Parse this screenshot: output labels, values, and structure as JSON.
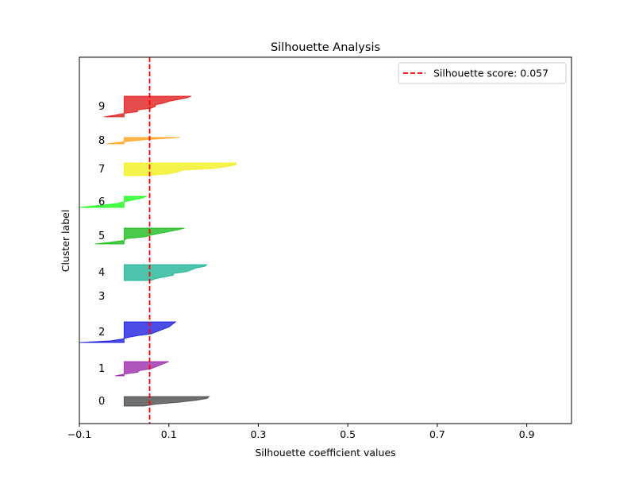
{
  "chart_data": {
    "type": "area",
    "title": "Silhouette Analysis",
    "xlabel": "Silhouette coefficient values",
    "ylabel": "Cluster label",
    "xlim": [
      -0.1,
      1.0
    ],
    "ylim": [
      0,
      230.5
    ],
    "xticks": [
      -0.1,
      0.1,
      0.3,
      0.5,
      0.7,
      0.9
    ],
    "xtick_labels": [
      "−0.1",
      "0.1",
      "0.3",
      "0.5",
      "0.7",
      "0.9"
    ],
    "yticks": [],
    "grid": false,
    "silhouette_score": 0.057,
    "score_line": {
      "label": "Silhouette score: 0.057",
      "color": "#ff0000",
      "style": "dashed"
    },
    "legend": {
      "placement": "top-right",
      "entries": [
        "Silhouette score: 0.057"
      ]
    },
    "clusters": [
      {
        "label": "0",
        "color": "#333333",
        "y_lower": 11,
        "size": 6,
        "values": [
          0.045,
          0.07,
          0.12,
          0.16,
          0.185,
          0.19
        ]
      },
      {
        "label": "1",
        "color": "#8e0ea0",
        "y_lower": 30,
        "size": 9,
        "values": [
          -0.02,
          0.0,
          0.03,
          0.035,
          0.06,
          0.07,
          0.08,
          0.09,
          0.1
        ]
      },
      {
        "label": "2",
        "color": "#0000dd",
        "y_lower": 51,
        "size": 13,
        "values": [
          -0.1,
          -0.03,
          -0.005,
          0.01,
          0.03,
          0.06,
          0.07,
          0.08,
          0.09,
          0.1,
          0.105,
          0.11,
          0.115
        ]
      },
      {
        "label": "3",
        "color": "#0088dd",
        "y_lower": 80,
        "size": 0,
        "values": []
      },
      {
        "label": "4",
        "color": "#00aa88",
        "y_lower": 90,
        "size": 10,
        "values": [
          0.06,
          0.07,
          0.09,
          0.11,
          0.11,
          0.14,
          0.15,
          0.16,
          0.18,
          0.185
        ]
      },
      {
        "label": "5",
        "color": "#00b400",
        "y_lower": 113,
        "size": 10,
        "values": [
          -0.065,
          -0.03,
          0.0,
          0.005,
          0.045,
          0.06,
          0.08,
          0.1,
          0.12,
          0.135
        ]
      },
      {
        "label": "6",
        "color": "#00ff00",
        "y_lower": 136,
        "size": 7,
        "values": [
          -0.1,
          -0.06,
          -0.02,
          0.0,
          0.02,
          0.04,
          0.05
        ]
      },
      {
        "label": "7",
        "color": "#eeee00",
        "y_lower": 156,
        "size": 8,
        "values": [
          0.05,
          0.1,
          0.12,
          0.13,
          0.2,
          0.23,
          0.25,
          0.25
        ]
      },
      {
        "label": "8",
        "color": "#ff9900",
        "y_lower": 176,
        "size": 4,
        "values": [
          -0.04,
          0.0,
          0.05,
          0.125
        ]
      },
      {
        "label": "9",
        "color": "#dd0000",
        "y_lower": 193,
        "size": 13,
        "values": [
          -0.045,
          -0.02,
          0.0,
          0.03,
          0.03,
          0.06,
          0.07,
          0.07,
          0.09,
          0.1,
          0.12,
          0.14,
          0.15
        ]
      }
    ]
  }
}
